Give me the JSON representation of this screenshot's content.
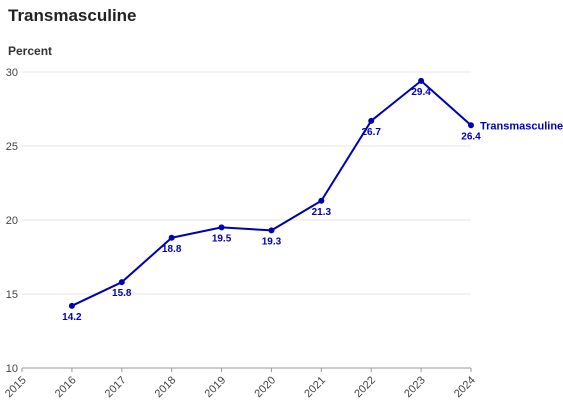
{
  "chart_data": {
    "type": "line",
    "title": "Transmasculine",
    "ylabel": "Percent",
    "xlabel": "",
    "x": [
      2016,
      2017,
      2018,
      2019,
      2020,
      2021,
      2022,
      2023,
      2024
    ],
    "x_ticks": [
      "2015",
      "2016",
      "2017",
      "2018",
      "2019",
      "2020",
      "2021",
      "2022",
      "2023",
      "2024"
    ],
    "xlim": [
      2015,
      2024
    ],
    "y_ticks": [
      "10",
      "15",
      "20",
      "25",
      "30"
    ],
    "ylim": [
      10,
      30
    ],
    "grid": "horizontal",
    "series": [
      {
        "name": "Transmasculine",
        "color": "#0000b3",
        "values": [
          14.2,
          15.8,
          18.8,
          19.5,
          19.3,
          21.3,
          26.7,
          29.4,
          26.4
        ],
        "data_labels": [
          "14.2",
          "15.8",
          "18.8",
          "19.5",
          "19.3",
          "21.3",
          "26.7",
          "29.4",
          "26.4"
        ]
      }
    ]
  }
}
